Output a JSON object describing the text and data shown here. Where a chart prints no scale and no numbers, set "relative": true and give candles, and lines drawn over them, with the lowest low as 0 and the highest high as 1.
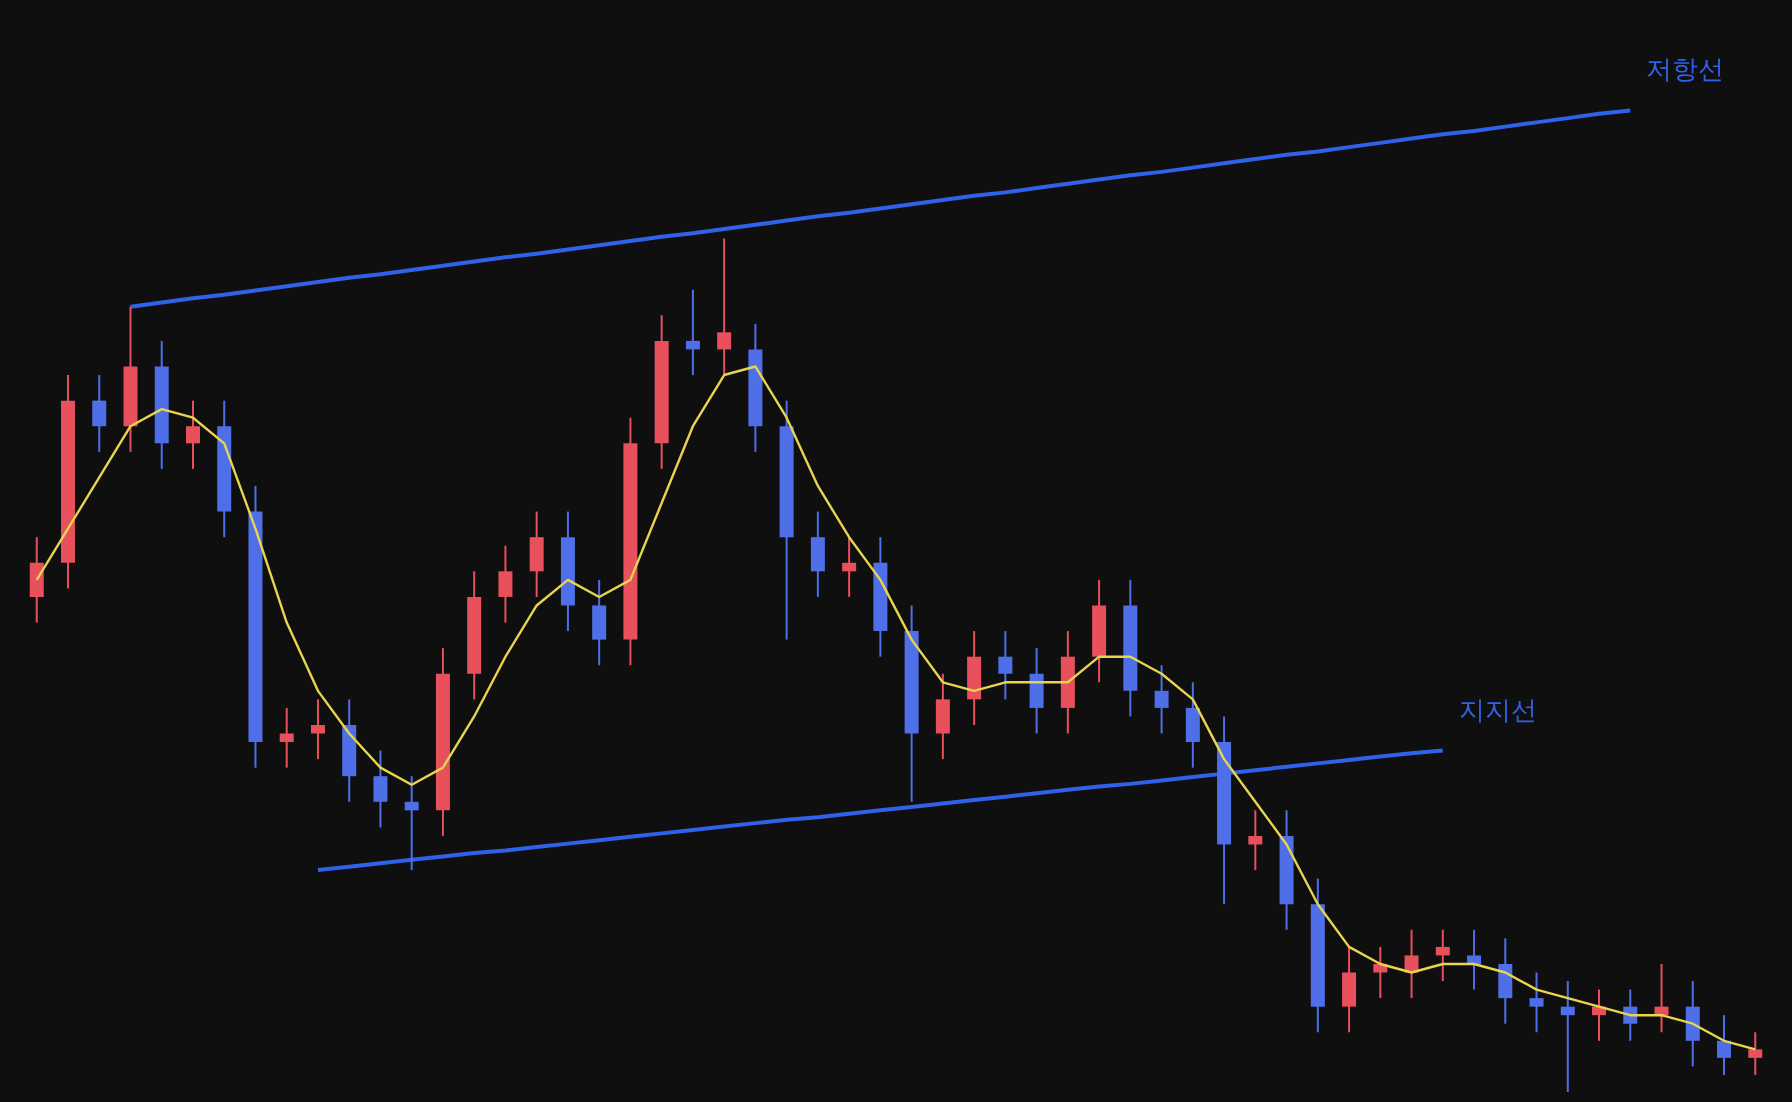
{
  "chart_data": {
    "type": "candlestick",
    "relative": true,
    "categories": [
      null,
      null,
      null,
      null,
      null,
      null,
      null,
      null,
      null,
      null,
      null,
      null,
      null,
      null,
      null,
      null,
      null,
      null,
      null,
      null,
      null,
      null,
      null,
      null,
      null,
      null,
      null,
      null,
      null,
      null,
      null,
      null,
      null,
      null,
      null,
      null,
      null,
      null,
      null,
      null,
      null,
      null,
      null,
      null,
      null,
      null,
      null,
      null,
      null,
      null,
      null,
      null,
      null,
      null,
      null,
      null
    ],
    "ohlc": [
      [
        0.58,
        0.65,
        0.55,
        0.62
      ],
      [
        0.62,
        0.84,
        0.59,
        0.81
      ],
      [
        0.81,
        0.84,
        0.75,
        0.78
      ],
      [
        0.78,
        0.92,
        0.75,
        0.85
      ],
      [
        0.85,
        0.88,
        0.73,
        0.76
      ],
      [
        0.76,
        0.81,
        0.73,
        0.78
      ],
      [
        0.78,
        0.81,
        0.65,
        0.68
      ],
      [
        0.68,
        0.71,
        0.38,
        0.41
      ],
      [
        0.41,
        0.45,
        0.38,
        0.42
      ],
      [
        0.42,
        0.46,
        0.39,
        0.43
      ],
      [
        0.43,
        0.46,
        0.34,
        0.37
      ],
      [
        0.37,
        0.4,
        0.31,
        0.34
      ],
      [
        0.34,
        0.37,
        0.26,
        0.33
      ],
      [
        0.33,
        0.52,
        0.3,
        0.49
      ],
      [
        0.49,
        0.61,
        0.46,
        0.58
      ],
      [
        0.58,
        0.64,
        0.55,
        0.61
      ],
      [
        0.61,
        0.68,
        0.58,
        0.65
      ],
      [
        0.65,
        0.68,
        0.54,
        0.57
      ],
      [
        0.57,
        0.6,
        0.5,
        0.53
      ],
      [
        0.53,
        0.79,
        0.5,
        0.76
      ],
      [
        0.76,
        0.91,
        0.73,
        0.88
      ],
      [
        0.88,
        0.94,
        0.84,
        0.87
      ],
      [
        0.87,
        1.0,
        0.84,
        0.89
      ],
      [
        0.87,
        0.9,
        0.75,
        0.78
      ],
      [
        0.78,
        0.81,
        0.53,
        0.65
      ],
      [
        0.65,
        0.68,
        0.58,
        0.61
      ],
      [
        0.61,
        0.65,
        0.58,
        0.62
      ],
      [
        0.62,
        0.65,
        0.51,
        0.54
      ],
      [
        0.54,
        0.57,
        0.34,
        0.42
      ],
      [
        0.42,
        0.49,
        0.39,
        0.46
      ],
      [
        0.46,
        0.54,
        0.43,
        0.51
      ],
      [
        0.51,
        0.54,
        0.46,
        0.49
      ],
      [
        0.49,
        0.52,
        0.42,
        0.45
      ],
      [
        0.45,
        0.54,
        0.42,
        0.51
      ],
      [
        0.51,
        0.6,
        0.48,
        0.57
      ],
      [
        0.57,
        0.6,
        0.44,
        0.47
      ],
      [
        0.47,
        0.5,
        0.42,
        0.45
      ],
      [
        0.45,
        0.48,
        0.38,
        0.41
      ],
      [
        0.41,
        0.44,
        0.22,
        0.29
      ],
      [
        0.29,
        0.33,
        0.26,
        0.3
      ],
      [
        0.3,
        0.33,
        0.19,
        0.22
      ],
      [
        0.22,
        0.25,
        0.07,
        0.1
      ],
      [
        0.1,
        0.17,
        0.07,
        0.14
      ],
      [
        0.14,
        0.17,
        0.11,
        0.15
      ],
      [
        0.14,
        0.19,
        0.11,
        0.16
      ],
      [
        0.16,
        0.19,
        0.13,
        0.17
      ],
      [
        0.16,
        0.19,
        0.12,
        0.15
      ],
      [
        0.15,
        0.18,
        0.08,
        0.11
      ],
      [
        0.11,
        0.14,
        0.07,
        0.1
      ],
      [
        0.1,
        0.13,
        0.0,
        0.09
      ],
      [
        0.09,
        0.12,
        0.06,
        0.1
      ],
      [
        0.1,
        0.12,
        0.06,
        0.08
      ],
      [
        0.09,
        0.15,
        0.07,
        0.1
      ],
      [
        0.1,
        0.13,
        0.03,
        0.06
      ],
      [
        0.06,
        0.09,
        0.02,
        0.04
      ],
      [
        0.04,
        0.07,
        0.02,
        0.05
      ]
    ],
    "colors": [
      "#e8505b",
      "#e8505b",
      "#4f6fe8",
      "#e8505b",
      "#4f6fe8",
      "#e8505b",
      "#4f6fe8",
      "#4f6fe8",
      "#e8505b",
      "#e8505b",
      "#4f6fe8",
      "#4f6fe8",
      "#4f6fe8",
      "#e8505b",
      "#e8505b",
      "#e8505b",
      "#e8505b",
      "#4f6fe8",
      "#4f6fe8",
      "#e8505b",
      "#e8505b",
      "#4f6fe8",
      "#e8505b",
      "#4f6fe8",
      "#4f6fe8",
      "#4f6fe8",
      "#e8505b",
      "#4f6fe8",
      "#4f6fe8",
      "#e8505b",
      "#e8505b",
      "#4f6fe8",
      "#4f6fe8",
      "#e8505b",
      "#e8505b",
      "#4f6fe8",
      "#4f6fe8",
      "#4f6fe8",
      "#4f6fe8",
      "#e8505b",
      "#4f6fe8",
      "#4f6fe8",
      "#e8505b",
      "#e8505b",
      "#e8505b",
      "#e8505b",
      "#4f6fe8",
      "#4f6fe8",
      "#4f6fe8",
      "#4f6fe8",
      "#e8505b",
      "#4f6fe8",
      "#e8505b",
      "#4f6fe8",
      "#4f6fe8",
      "#e8505b"
    ],
    "series": [
      {
        "type": "line",
        "color": "#e8d44d",
        "values": [
          0.6,
          0.66,
          0.72,
          0.78,
          0.8,
          0.79,
          0.76,
          0.66,
          0.55,
          0.47,
          0.42,
          0.38,
          0.36,
          0.38,
          0.44,
          0.51,
          0.57,
          0.6,
          0.58,
          0.6,
          0.69,
          0.78,
          0.84,
          0.85,
          0.79,
          0.71,
          0.65,
          0.6,
          0.53,
          0.48,
          0.47,
          0.48,
          0.48,
          0.48,
          0.51,
          0.51,
          0.49,
          0.46,
          0.39,
          0.34,
          0.29,
          0.22,
          0.17,
          0.15,
          0.14,
          0.15,
          0.15,
          0.14,
          0.12,
          0.11,
          0.1,
          0.09,
          0.09,
          0.08,
          0.06,
          0.05
        ]
      },
      {
        "type": "line",
        "name": "저항선",
        "color": "#2f62e8",
        "values": [
          null,
          null,
          null,
          0.92,
          0.925,
          0.93,
          0.934,
          0.939,
          0.944,
          0.949,
          0.954,
          0.958,
          0.963,
          0.968,
          0.973,
          0.978,
          0.982,
          0.987,
          0.992,
          0.997,
          1.002,
          1.006,
          1.011,
          1.016,
          1.021,
          1.026,
          1.03,
          1.035,
          1.04,
          1.045,
          1.05,
          1.054,
          1.059,
          1.064,
          1.069,
          1.074,
          1.078,
          1.083,
          1.088,
          1.093,
          1.098,
          1.102,
          1.107,
          1.112,
          1.117,
          1.122,
          1.126,
          1.131,
          1.136,
          1.141,
          1.146,
          1.15,
          null,
          null,
          null,
          null
        ]
      },
      {
        "type": "line",
        "name": "지지선",
        "color": "#2f62e8",
        "values": [
          null,
          null,
          null,
          null,
          null,
          null,
          null,
          null,
          null,
          0.26,
          0.264,
          0.268,
          0.272,
          0.276,
          0.28,
          0.283,
          0.287,
          0.291,
          0.295,
          0.299,
          0.303,
          0.307,
          0.311,
          0.315,
          0.319,
          0.322,
          0.326,
          0.33,
          0.334,
          0.338,
          0.342,
          0.346,
          0.35,
          0.354,
          0.358,
          0.361,
          0.365,
          0.369,
          0.373,
          0.377,
          0.381,
          0.385,
          0.389,
          0.393,
          0.397,
          0.4,
          null,
          null,
          null,
          null,
          null,
          null,
          null,
          null,
          null,
          null
        ]
      }
    ]
  }
}
